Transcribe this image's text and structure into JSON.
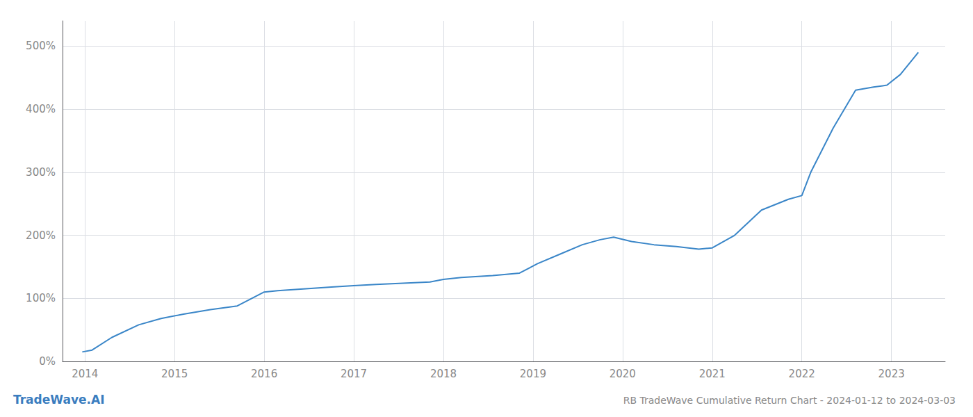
{
  "chart_data": {
    "type": "line",
    "title": "RB TradeWave Cumulative Return Chart - 2024-01-12 to 2024-03-03",
    "annotations": [
      "TradeWave.AI"
    ],
    "color": "#3a86c8",
    "x": [
      2013.97,
      2014.08,
      2014.3,
      2014.6,
      2014.85,
      2015.1,
      2015.4,
      2015.7,
      2016.0,
      2016.15,
      2016.35,
      2016.55,
      2016.75,
      2017.0,
      2017.25,
      2017.55,
      2017.85,
      2018.0,
      2018.2,
      2018.55,
      2018.85,
      2019.05,
      2019.3,
      2019.55,
      2019.75,
      2019.9,
      2020.1,
      2020.35,
      2020.6,
      2020.85,
      2021.0,
      2021.25,
      2021.55,
      2021.85,
      2022.0,
      2022.1,
      2022.35,
      2022.6,
      2022.8,
      2022.95,
      2023.1,
      2023.3
    ],
    "values": [
      15,
      18,
      38,
      58,
      68,
      75,
      82,
      88,
      110,
      112,
      114,
      116,
      118,
      120,
      122,
      124,
      126,
      130,
      133,
      136,
      140,
      155,
      170,
      185,
      193,
      197,
      190,
      185,
      182,
      178,
      180,
      200,
      240,
      257,
      263,
      300,
      370,
      430,
      435,
      438,
      455,
      490
    ],
    "xlim": [
      2013.75,
      2023.6
    ],
    "xticks": [
      2014,
      2015,
      2016,
      2017,
      2018,
      2019,
      2020,
      2021,
      2022,
      2023
    ],
    "ylim": [
      0,
      540
    ],
    "yticks": [
      {
        "value": 0,
        "label": "0%"
      },
      {
        "value": 100,
        "label": "100%"
      },
      {
        "value": 200,
        "label": "200%"
      },
      {
        "value": 300,
        "label": "300%"
      },
      {
        "value": 400,
        "label": "400%"
      },
      {
        "value": 500,
        "label": "500%"
      }
    ],
    "grid": true
  }
}
